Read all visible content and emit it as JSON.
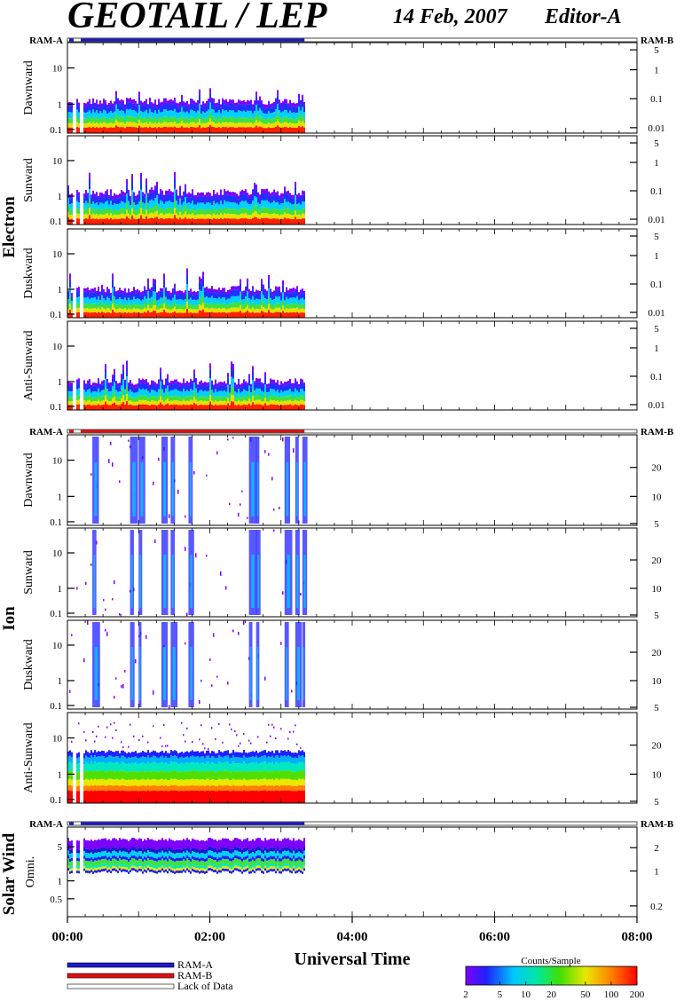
{
  "header": {
    "title": "GEOTAIL / LEP",
    "date": "14 Feb, 2007",
    "editor": "Editor-A"
  },
  "colors": {
    "ram_a": "#1a1acc",
    "ram_b": "#e01010",
    "lack": "#ffffff",
    "frame": "#000000"
  },
  "chart_data": {
    "type": "heatmap",
    "xlabel": "Universal Time",
    "x_ticks": [
      "00:00",
      "02:00",
      "04:00",
      "06:00",
      "08:00"
    ],
    "x_range_hours": [
      0,
      8
    ],
    "data_end_hours": 3.33,
    "gaps_hours": [
      [
        0.07,
        0.12
      ],
      [
        0.17,
        0.22
      ]
    ],
    "mode_bar_labels": {
      "left": "RAM-A",
      "right": "RAM-B"
    },
    "groups": [
      {
        "name": "Electron",
        "mode": "RAM-A",
        "panels": [
          {
            "label": "Dawnward",
            "left_ticks": [
              "10",
              "1",
              "0.1"
            ],
            "right_ticks": [
              "5",
              "1",
              "0.1",
              "0.01"
            ]
          },
          {
            "label": "Sunward",
            "left_ticks": [
              "10",
              "1",
              "0.1"
            ],
            "right_ticks": [
              "5",
              "1",
              "0.1",
              "0.01"
            ]
          },
          {
            "label": "Duskward",
            "left_ticks": [
              "10",
              "1",
              "0.1"
            ],
            "right_ticks": [
              "5",
              "1",
              "0.1",
              "0.01"
            ]
          },
          {
            "label": "Anti-Sunward",
            "left_ticks": [
              "10",
              "1",
              "0.1"
            ],
            "right_ticks": [
              "5",
              "1",
              "0.1",
              "0.01"
            ]
          }
        ]
      },
      {
        "name": "Ion",
        "mode": "RAM-B",
        "panels": [
          {
            "label": "Dawnward",
            "left_ticks": [
              "10",
              "1",
              "0.1"
            ],
            "right_ticks": [
              "20",
              "10",
              "5"
            ]
          },
          {
            "label": "Sunward",
            "left_ticks": [
              "10",
              "1",
              "0.1"
            ],
            "right_ticks": [
              "20",
              "10",
              "5"
            ]
          },
          {
            "label": "Duskward",
            "left_ticks": [
              "10",
              "1",
              "0.1"
            ],
            "right_ticks": [
              "20",
              "10",
              "5"
            ]
          },
          {
            "label": "Anti-Sunward",
            "left_ticks": [
              "10",
              "1",
              "0.1"
            ],
            "right_ticks": [
              "20",
              "10",
              "5"
            ]
          }
        ]
      },
      {
        "name": "Solar Wind",
        "mode": "RAM-A",
        "panels": [
          {
            "label": "Omni.",
            "left_ticks": [
              "5",
              "1",
              "0.5"
            ],
            "right_ticks": [
              "2",
              "1",
              "0.2"
            ]
          }
        ]
      }
    ],
    "legend": {
      "items": [
        {
          "label": "RAM-A",
          "color": "#1a1acc"
        },
        {
          "label": "RAM-B",
          "color": "#e01010"
        },
        {
          "label": "Lack of Data",
          "color": "#ffffff"
        }
      ]
    },
    "colorbar": {
      "title": "Counts/Sample",
      "scale": "log",
      "range": [
        2,
        200
      ],
      "ticks": [
        "2",
        "5",
        "10",
        "20",
        "50",
        "100",
        "200"
      ]
    }
  }
}
